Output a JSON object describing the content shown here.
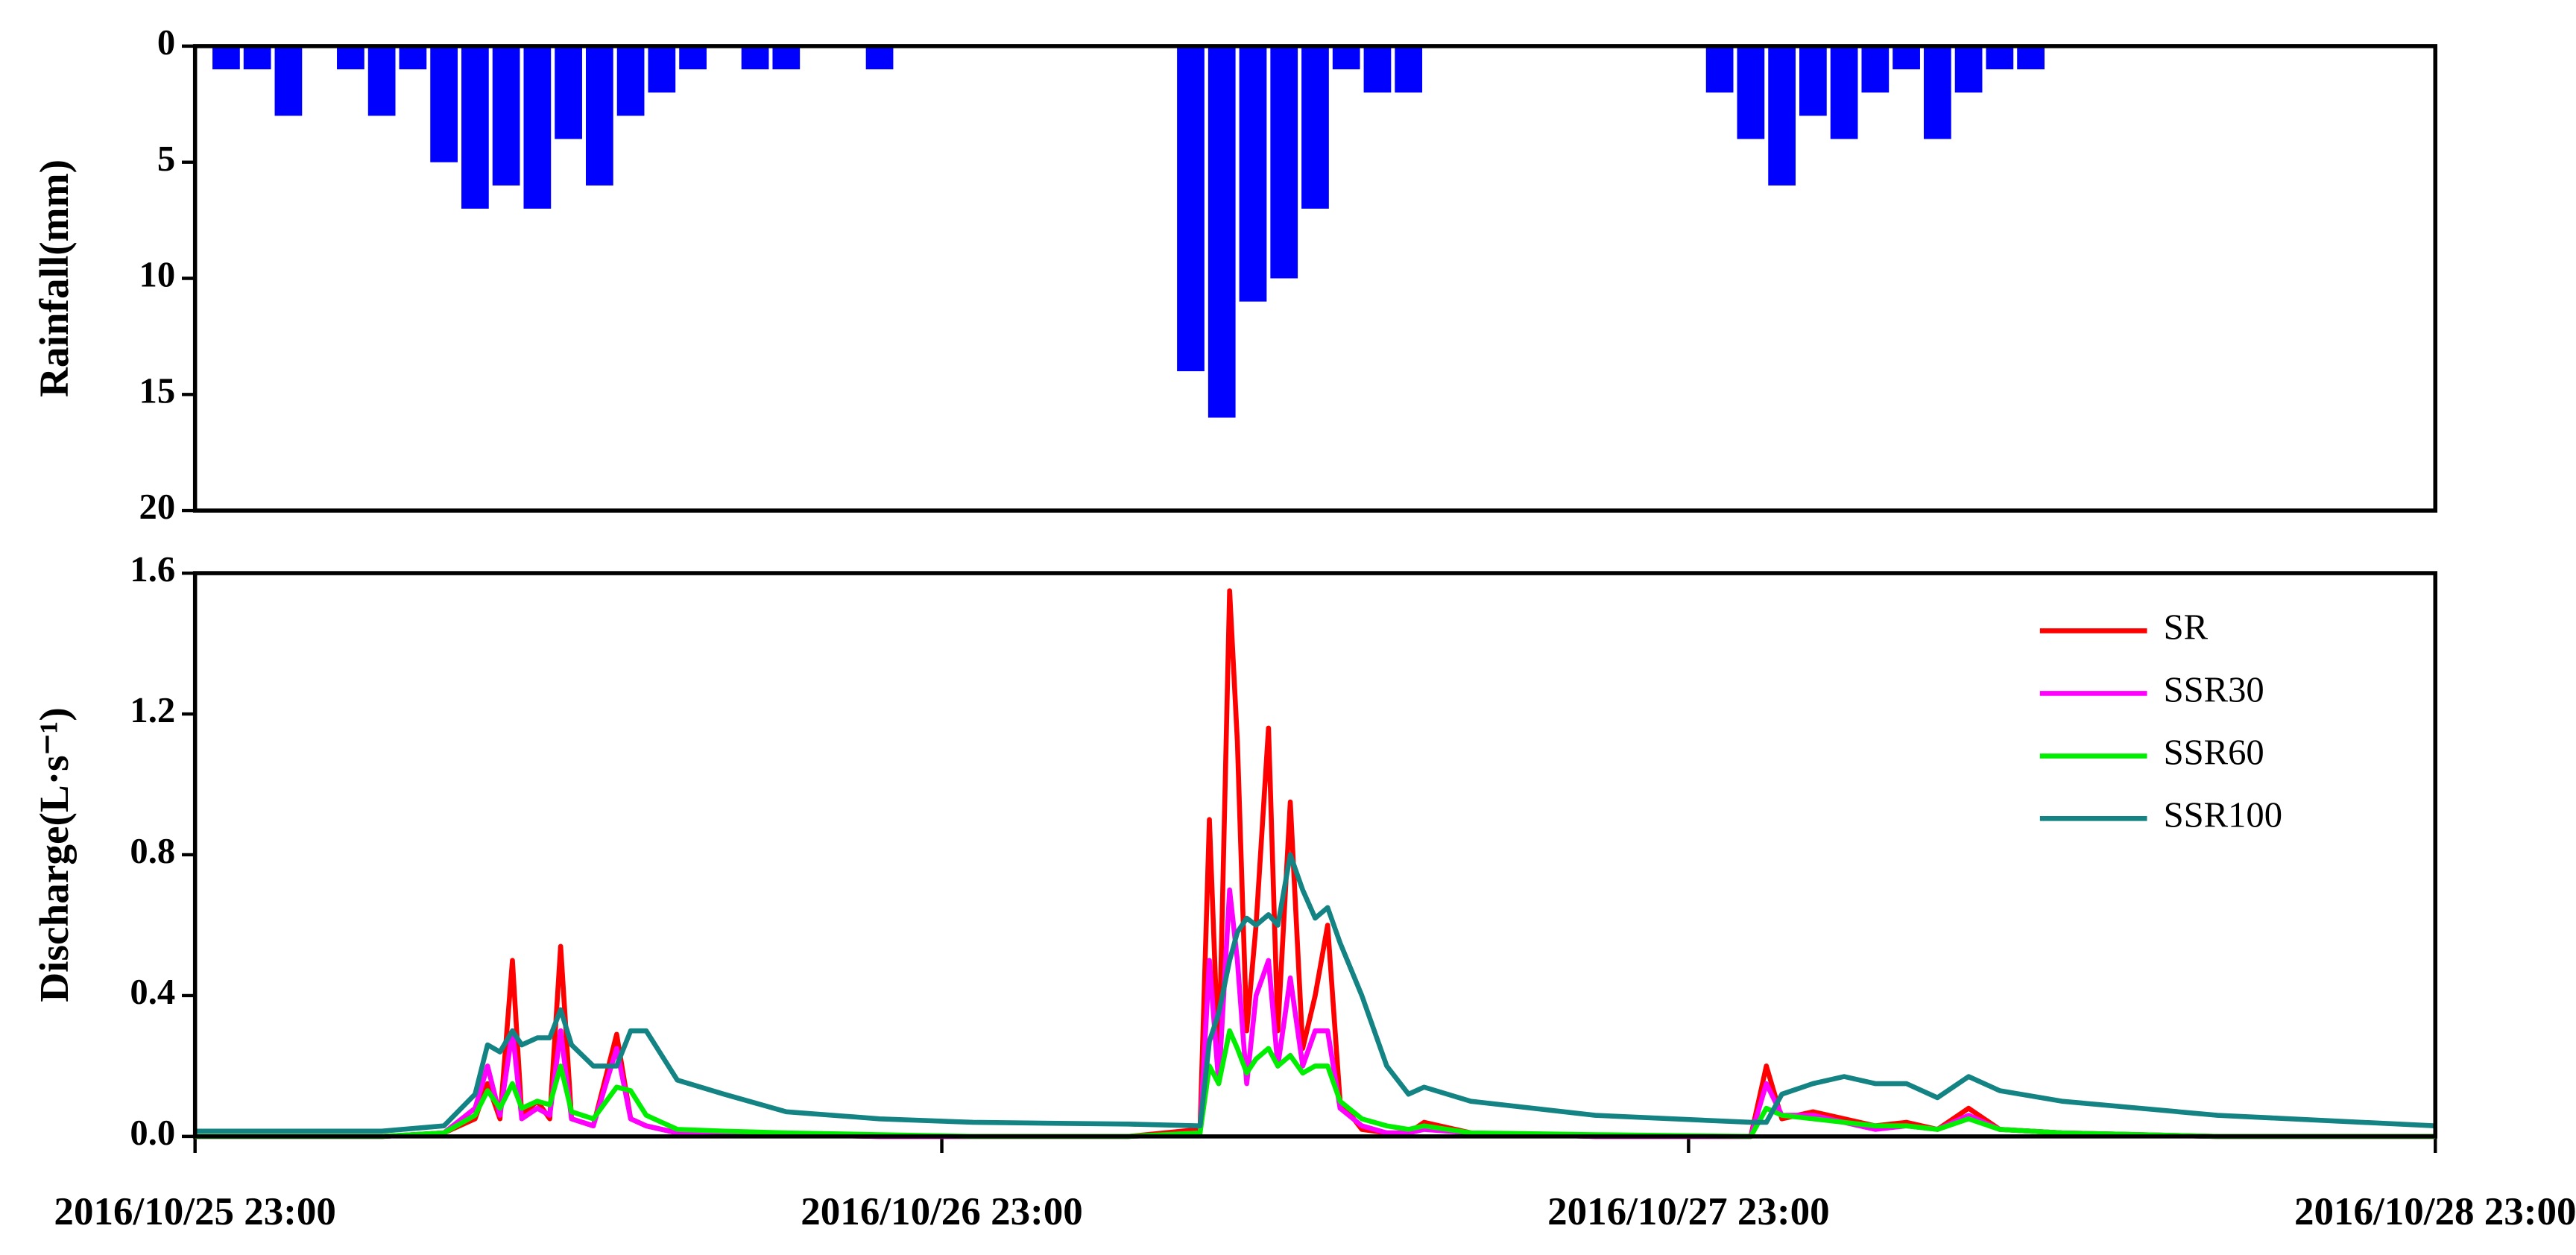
{
  "chart_data": [
    {
      "type": "bar",
      "y_label": "Rainfall(mm)",
      "color": "#0000ff",
      "inverted": true,
      "x": [
        1,
        2,
        3,
        5,
        6,
        7,
        8,
        9,
        10,
        11,
        12,
        13,
        14,
        15,
        16,
        18,
        19,
        22,
        32,
        33,
        34,
        35,
        36,
        37,
        38,
        39,
        49,
        50,
        51,
        52,
        53,
        54,
        55,
        56,
        57,
        58,
        59
      ],
      "values": [
        1,
        1,
        3,
        1,
        3,
        1,
        5,
        7,
        6,
        7,
        4,
        6,
        3,
        2,
        1,
        1,
        1,
        1,
        14,
        16,
        11,
        10,
        7,
        1,
        2,
        2,
        2,
        4,
        6,
        3,
        4,
        2,
        1,
        4,
        2,
        1,
        1
      ],
      "xlim": [
        0,
        72
      ],
      "ylim": [
        0,
        20
      ],
      "yticks": [
        0,
        5,
        10,
        15,
        20
      ]
    },
    {
      "type": "line",
      "y_label": "Discharge(L·s⁻¹)",
      "legend": "upper right",
      "x": [
        0,
        6,
        8,
        9,
        9.4,
        9.8,
        10.2,
        10.5,
        11,
        11.4,
        11.75,
        12.1,
        12.8,
        13.55,
        14,
        14.5,
        15.5,
        17,
        19,
        22,
        25,
        30,
        32.3,
        32.6,
        32.9,
        33.25,
        33.5,
        33.8,
        34.1,
        34.5,
        34.8,
        35.2,
        35.6,
        36,
        36.4,
        36.8,
        37.5,
        38.3,
        39,
        39.5,
        41,
        45,
        50,
        50.5,
        51,
        52,
        53,
        54,
        55,
        56,
        57,
        58,
        60,
        65,
        72
      ],
      "series": [
        {
          "name": "SR",
          "color": "#ff0000",
          "values": [
            0,
            0,
            0.01,
            0.05,
            0.15,
            0.05,
            0.5,
            0.06,
            0.1,
            0.05,
            0.54,
            0.05,
            0.03,
            0.29,
            0.05,
            0.03,
            0.01,
            0.01,
            0.005,
            0,
            0,
            0,
            0.02,
            0.9,
            0.2,
            1.55,
            1.12,
            0.3,
            0.6,
            1.16,
            0.3,
            0.95,
            0.25,
            0.4,
            0.6,
            0.1,
            0.02,
            0.01,
            0.01,
            0.04,
            0.01,
            0,
            0,
            0.2,
            0.05,
            0.07,
            0.05,
            0.03,
            0.04,
            0.02,
            0.08,
            0.02,
            0.01,
            0,
            0
          ]
        },
        {
          "name": "SSR30",
          "color": "#ff00ff",
          "values": [
            0,
            0,
            0.01,
            0.08,
            0.2,
            0.06,
            0.3,
            0.05,
            0.08,
            0.06,
            0.3,
            0.05,
            0.03,
            0.25,
            0.05,
            0.03,
            0.01,
            0.01,
            0.005,
            0,
            0,
            0,
            0.01,
            0.5,
            0.15,
            0.7,
            0.5,
            0.15,
            0.4,
            0.5,
            0.2,
            0.45,
            0.2,
            0.3,
            0.3,
            0.08,
            0.03,
            0.01,
            0.01,
            0.02,
            0.01,
            0,
            0,
            0.15,
            0.06,
            0.06,
            0.04,
            0.02,
            0.03,
            0.02,
            0.06,
            0.02,
            0.01,
            0,
            0
          ]
        },
        {
          "name": "SSR60",
          "color": "#00ee00",
          "values": [
            0,
            0,
            0.01,
            0.06,
            0.13,
            0.08,
            0.15,
            0.08,
            0.1,
            0.09,
            0.2,
            0.07,
            0.05,
            0.14,
            0.13,
            0.06,
            0.02,
            0.015,
            0.01,
            0.005,
            0,
            0,
            0.01,
            0.2,
            0.15,
            0.3,
            0.25,
            0.18,
            0.22,
            0.25,
            0.2,
            0.23,
            0.18,
            0.2,
            0.2,
            0.1,
            0.05,
            0.03,
            0.02,
            0.03,
            0.01,
            0.005,
            0,
            0.08,
            0.06,
            0.05,
            0.04,
            0.03,
            0.03,
            0.02,
            0.05,
            0.02,
            0.01,
            0,
            0
          ]
        },
        {
          "name": "SSR100",
          "color": "#138383",
          "values": [
            0.015,
            0.015,
            0.03,
            0.12,
            0.26,
            0.24,
            0.3,
            0.26,
            0.28,
            0.28,
            0.36,
            0.26,
            0.2,
            0.2,
            0.3,
            0.3,
            0.16,
            0.12,
            0.07,
            0.05,
            0.04,
            0.035,
            0.03,
            0.27,
            0.35,
            0.5,
            0.58,
            0.62,
            0.6,
            0.63,
            0.6,
            0.8,
            0.7,
            0.62,
            0.65,
            0.55,
            0.4,
            0.2,
            0.12,
            0.14,
            0.1,
            0.06,
            0.04,
            0.04,
            0.12,
            0.15,
            0.17,
            0.15,
            0.15,
            0.11,
            0.17,
            0.13,
            0.1,
            0.06,
            0.03
          ]
        }
      ],
      "xlim": [
        0,
        72
      ],
      "xticks": [
        {
          "value": 0,
          "label": "2016/10/25 23:00"
        },
        {
          "value": 24,
          "label": "2016/10/26 23:00"
        },
        {
          "value": 48,
          "label": "2016/10/27 23:00"
        },
        {
          "value": 72,
          "label": "2016/10/28 23:00"
        }
      ],
      "ylim": [
        0,
        1.6
      ],
      "yticks": [
        {
          "value": 0,
          "label": "0.0"
        },
        0.4,
        0.8,
        1.2,
        1.6
      ]
    }
  ]
}
